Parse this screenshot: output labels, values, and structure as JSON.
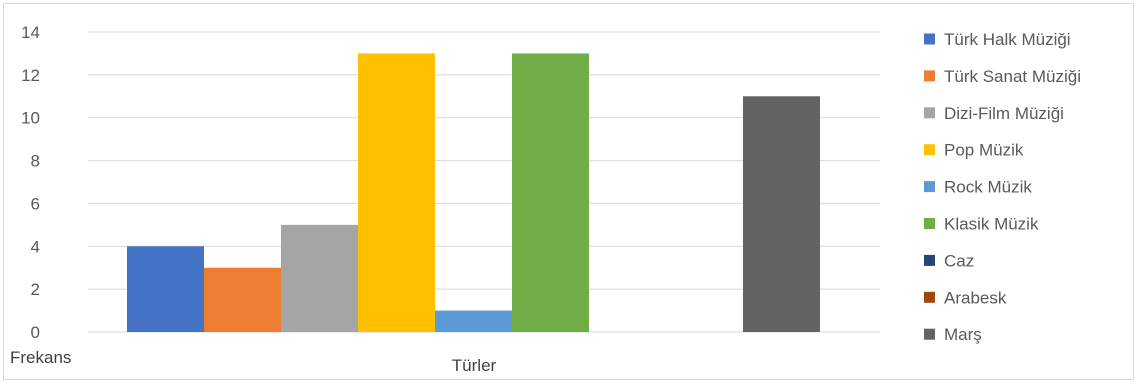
{
  "chart_data": {
    "type": "bar",
    "xlabel": "Türler",
    "ylabel": "Frekans",
    "ylim": [
      0,
      14
    ],
    "yticks": [
      0,
      2,
      4,
      6,
      8,
      10,
      12,
      14
    ],
    "grid": true,
    "legend_position": "right",
    "series": [
      {
        "name": "Türk Halk Müziği",
        "value": 4,
        "color": "#4472c4"
      },
      {
        "name": "Türk Sanat Müziği",
        "value": 3,
        "color": "#ed7d31"
      },
      {
        "name": "Dizi-Film Müziği",
        "value": 5,
        "color": "#a5a5a5"
      },
      {
        "name": "Pop Müzik",
        "value": 13,
        "color": "#ffc000"
      },
      {
        "name": "Rock Müzik",
        "value": 1,
        "color": "#5b9bd5"
      },
      {
        "name": "Klasik Müzik",
        "value": 13,
        "color": "#70ad47"
      },
      {
        "name": "Caz",
        "value": 0,
        "color": "#264478"
      },
      {
        "name": "Arabesk",
        "value": 0,
        "color": "#9e480e"
      },
      {
        "name": "Marş",
        "value": 11,
        "color": "#636363"
      }
    ]
  }
}
